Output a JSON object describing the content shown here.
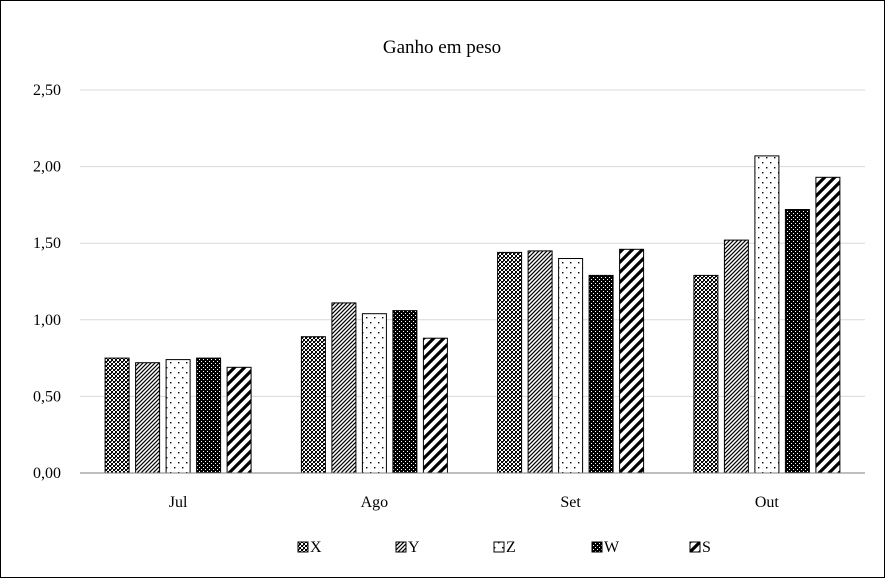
{
  "chart_data": {
    "type": "bar",
    "title": "Ganho em peso",
    "xlabel": "",
    "ylabel": "",
    "categories": [
      "Jul",
      "Ago",
      "Set",
      "Out"
    ],
    "series": [
      {
        "name": "X",
        "pattern": "dense-dots",
        "values": [
          0.75,
          0.89,
          1.44,
          1.29
        ]
      },
      {
        "name": "Y",
        "pattern": "diagonal-thin",
        "values": [
          0.72,
          1.11,
          1.45,
          1.52
        ]
      },
      {
        "name": "Z",
        "pattern": "sparse-dots",
        "values": [
          0.74,
          1.04,
          1.4,
          2.07
        ]
      },
      {
        "name": "W",
        "pattern": "dark-checker",
        "values": [
          0.75,
          1.06,
          1.29,
          1.72
        ]
      },
      {
        "name": "S",
        "pattern": "wide-diagonal",
        "values": [
          0.69,
          0.88,
          1.46,
          1.93
        ]
      }
    ],
    "ylim": [
      0,
      2.5
    ],
    "yticks": [
      "0,00",
      "0,50",
      "1,00",
      "1,50",
      "2,00",
      "2,50"
    ],
    "grid": true,
    "legend_position": "bottom"
  }
}
